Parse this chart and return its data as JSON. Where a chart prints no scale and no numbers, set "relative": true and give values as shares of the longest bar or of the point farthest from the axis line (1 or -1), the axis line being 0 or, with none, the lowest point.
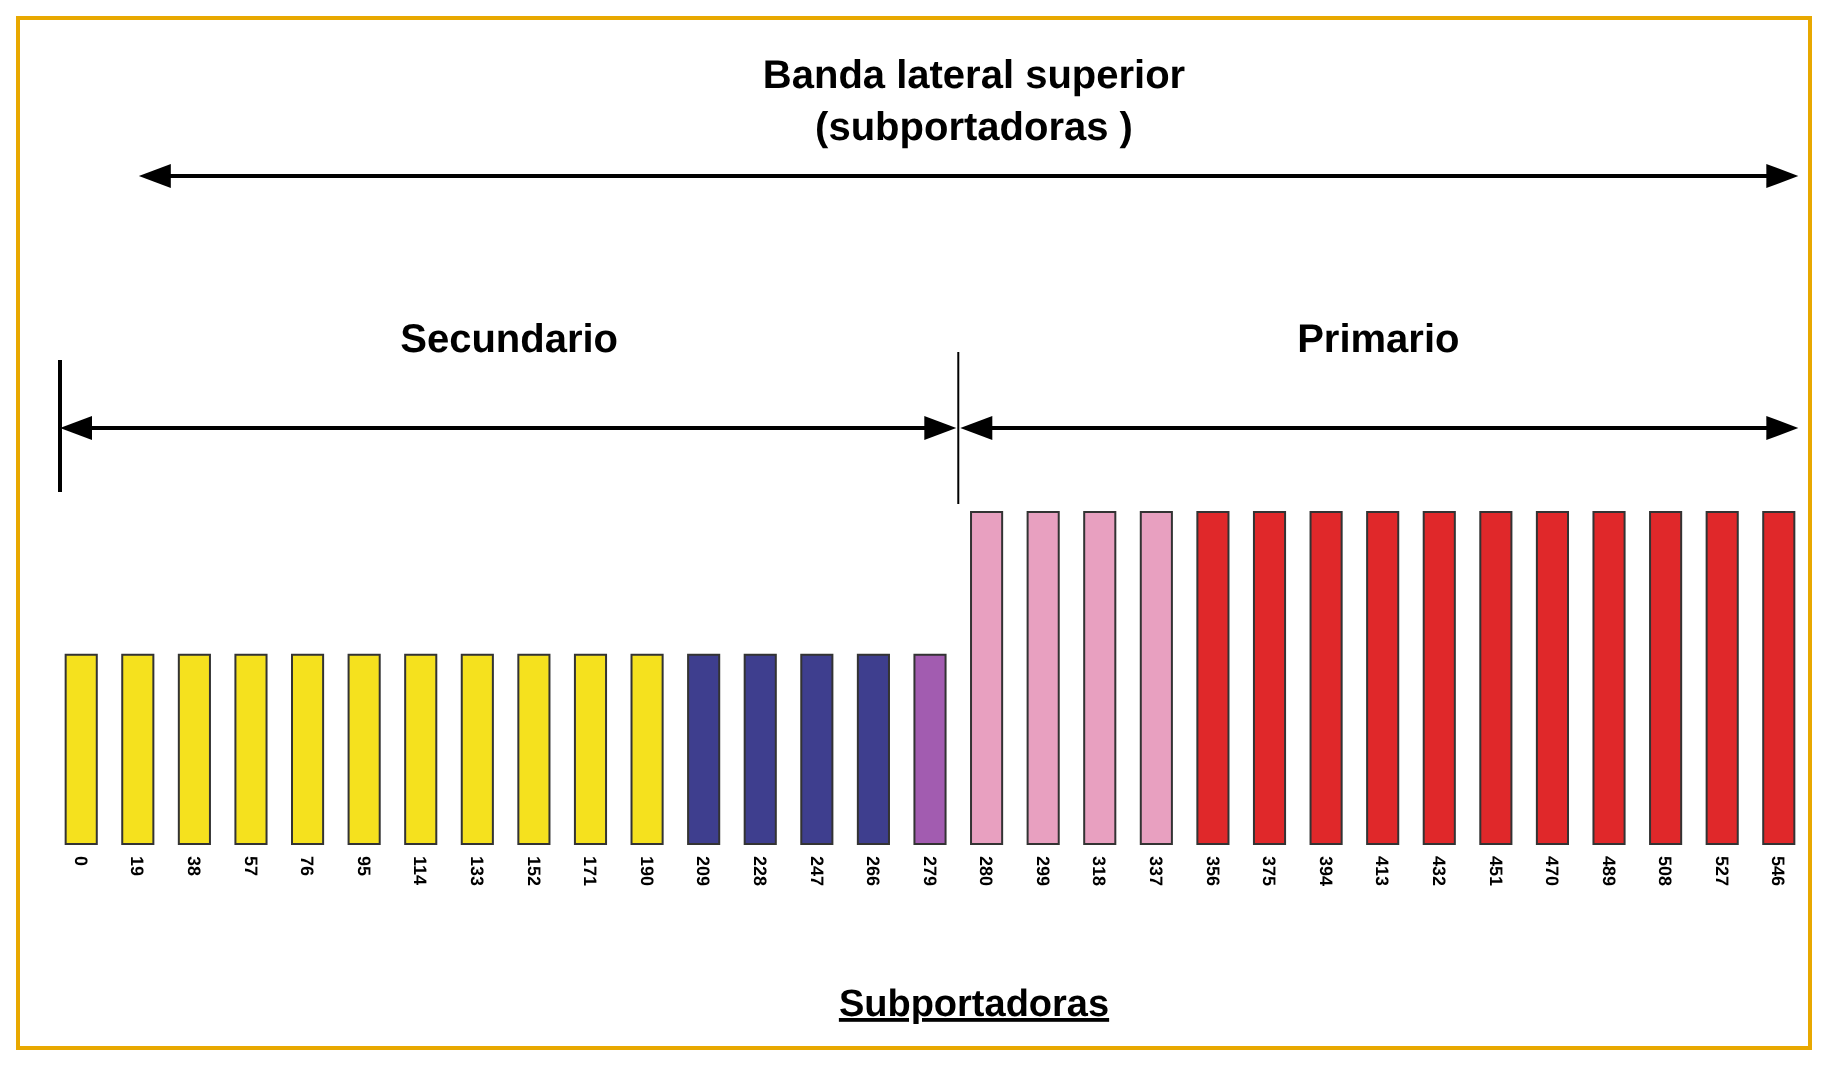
{
  "chart_data": {
    "type": "bar",
    "title": "Banda lateral superior",
    "subtitle": "(subportadoras )",
    "xlabel": "Subportadoras",
    "relative": true,
    "categories": [
      "0",
      "19",
      "38",
      "57",
      "76",
      "95",
      "114",
      "133",
      "152",
      "171",
      "190",
      "209",
      "228",
      "247",
      "266",
      "279",
      "280",
      "299",
      "318",
      "337",
      "356",
      "375",
      "394",
      "413",
      "432",
      "451",
      "470",
      "489",
      "508",
      "527",
      "546"
    ],
    "values": [
      0.57,
      0.57,
      0.57,
      0.57,
      0.57,
      0.57,
      0.57,
      0.57,
      0.57,
      0.57,
      0.57,
      0.57,
      0.57,
      0.57,
      0.57,
      0.57,
      1,
      1,
      1,
      1,
      1,
      1,
      1,
      1,
      1,
      1,
      1,
      1,
      1,
      1,
      1
    ],
    "colors": [
      "#f5e11e",
      "#f5e11e",
      "#f5e11e",
      "#f5e11e",
      "#f5e11e",
      "#f5e11e",
      "#f5e11e",
      "#f5e11e",
      "#f5e11e",
      "#f5e11e",
      "#f5e11e",
      "#3e3e8e",
      "#3e3e8e",
      "#3e3e8e",
      "#3e3e8e",
      "#a25cb0",
      "#e8a0c0",
      "#e8a0c0",
      "#e8a0c0",
      "#e8a0c0",
      "#e0282a",
      "#e0282a",
      "#e0282a",
      "#e0282a",
      "#e0282a",
      "#e0282a",
      "#e0282a",
      "#e0282a",
      "#e0282a",
      "#e0282a",
      "#e0282a"
    ],
    "annotations": [
      "Secundario",
      "Primario"
    ]
  }
}
